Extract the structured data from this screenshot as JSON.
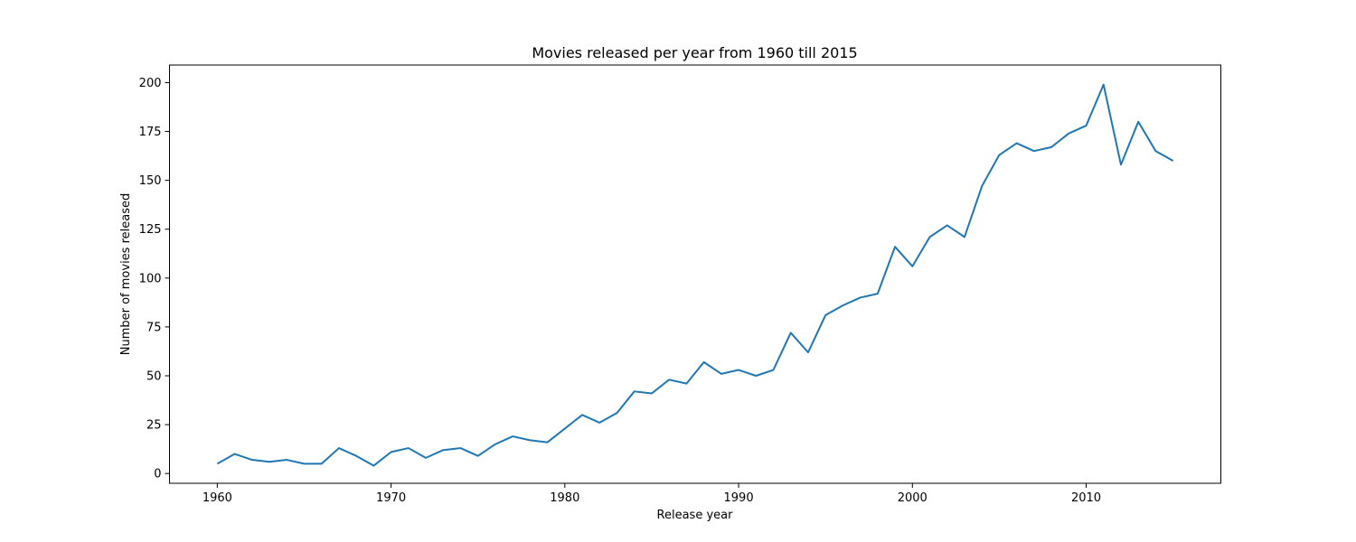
{
  "chart_data": {
    "type": "line",
    "title": "Movies released per year from 1960 till 2015",
    "xlabel": "Release year",
    "ylabel": "Number of movies released",
    "xlim": [
      1957.25,
      2017.75
    ],
    "ylim": [
      -5,
      209
    ],
    "xticks": [
      1960,
      1970,
      1980,
      1990,
      2000,
      2010
    ],
    "yticks": [
      0,
      25,
      50,
      75,
      100,
      125,
      150,
      175,
      200
    ],
    "grid": false,
    "series": [
      {
        "color": "#1f77b4",
        "x": [
          1960,
          1961,
          1962,
          1963,
          1964,
          1965,
          1966,
          1967,
          1968,
          1969,
          1970,
          1971,
          1972,
          1973,
          1974,
          1975,
          1976,
          1977,
          1978,
          1979,
          1980,
          1981,
          1982,
          1983,
          1984,
          1985,
          1986,
          1987,
          1988,
          1989,
          1990,
          1991,
          1992,
          1993,
          1994,
          1995,
          1996,
          1997,
          1998,
          1999,
          2000,
          2001,
          2002,
          2003,
          2004,
          2005,
          2006,
          2007,
          2008,
          2009,
          2010,
          2011,
          2012,
          2013,
          2014,
          2015
        ],
        "y": [
          5,
          10,
          7,
          6,
          7,
          5,
          5,
          13,
          9,
          4,
          11,
          13,
          8,
          12,
          13,
          9,
          15,
          19,
          17,
          16,
          23,
          30,
          26,
          31,
          42,
          41,
          48,
          46,
          57,
          51,
          53,
          50,
          53,
          72,
          62,
          81,
          86,
          90,
          92,
          116,
          106,
          121,
          127,
          121,
          147,
          163,
          169,
          165,
          167,
          174,
          178,
          199,
          158,
          180,
          165,
          160
        ]
      }
    ]
  }
}
